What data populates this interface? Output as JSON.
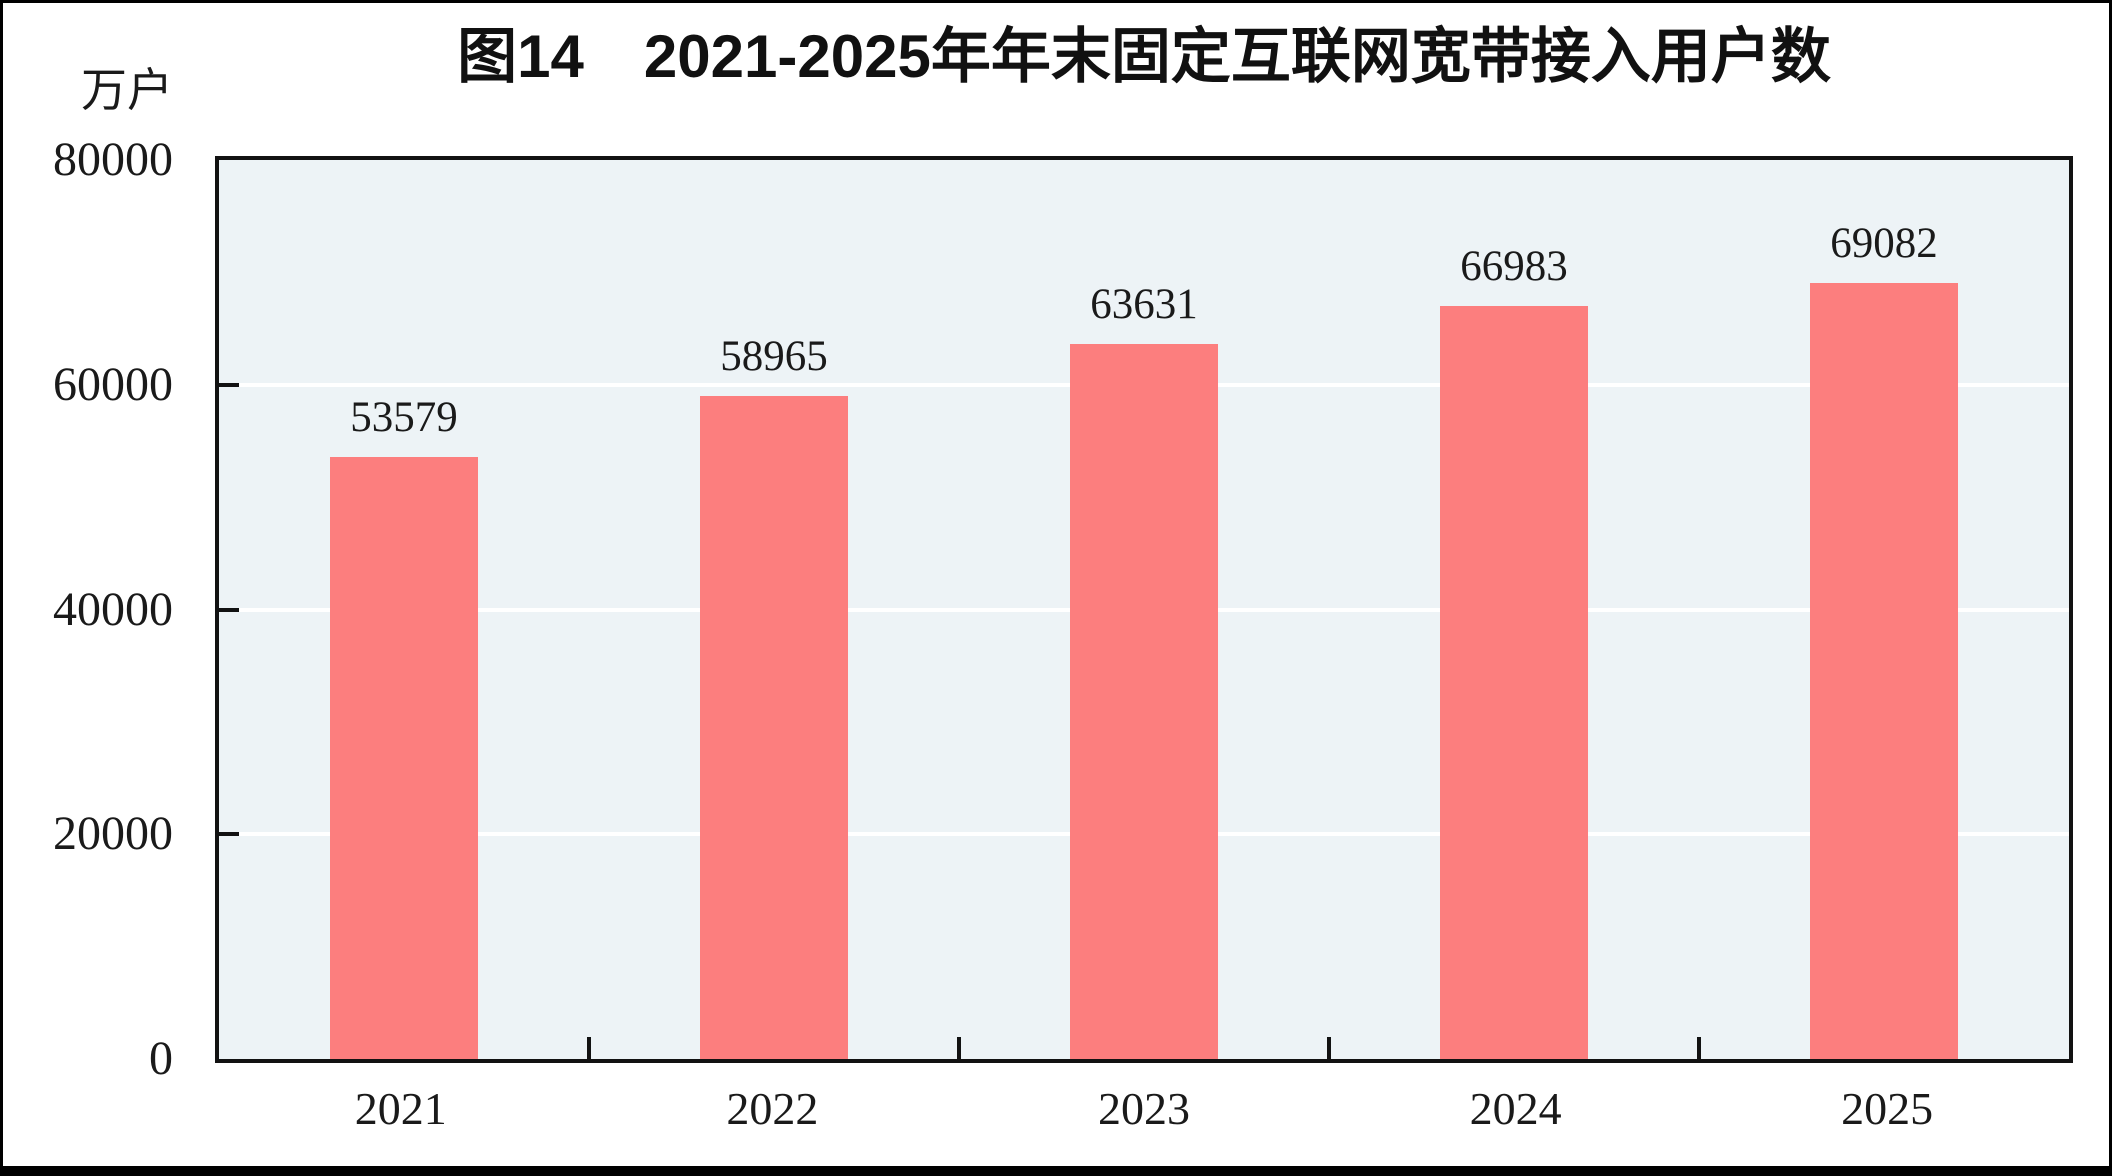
{
  "chart_data": {
    "type": "bar",
    "title": "图14　2021-2025年年末固定互联网宽带接入用户数",
    "unit": "万户",
    "categories": [
      "2021",
      "2022",
      "2023",
      "2024",
      "2025"
    ],
    "values": [
      53579,
      58965,
      63631,
      66983,
      69082
    ],
    "xlabel": "",
    "ylabel": "万户",
    "ylim": [
      0,
      80000
    ],
    "y_ticks": [
      0,
      20000,
      40000,
      60000,
      80000
    ],
    "grid": "horizontal white lines at 20000/40000/60000",
    "legend_position": "none",
    "bar_color": "#FC7E7E",
    "plot_background": "#EDF3F6",
    "frame_color": "#000000",
    "text_color": "#1A1A1A"
  }
}
